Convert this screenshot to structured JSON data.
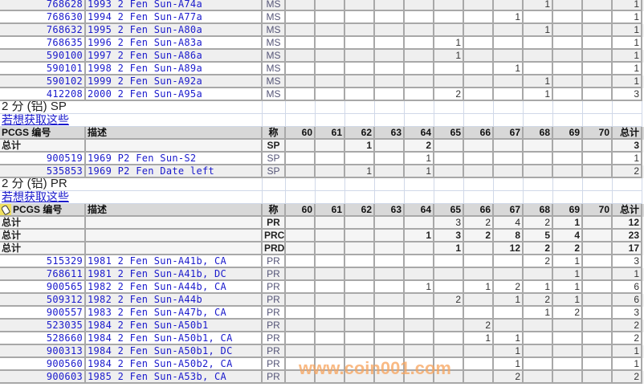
{
  "grades": [
    "60",
    "61",
    "62",
    "63",
    "64",
    "65",
    "66",
    "67",
    "68",
    "69",
    "70"
  ],
  "header": {
    "pcgs": "PCGS 编号",
    "desc": "描述",
    "desig": "称",
    "total": "总计"
  },
  "total_label": "总计",
  "sections": [
    {
      "title": "",
      "link": "",
      "show_header": false,
      "totals": [],
      "rows": [
        {
          "pcgs": "768628",
          "desc": "1993 2 Fen Sun-A74a",
          "desig": "MS",
          "v": {
            "68": "1"
          },
          "total": "1"
        },
        {
          "pcgs": "768630",
          "desc": "1994 2 Fen Sun-A77a",
          "desig": "MS",
          "v": {
            "67": "1"
          },
          "total": "1"
        },
        {
          "pcgs": "768632",
          "desc": "1995 2 Fen Sun-A80a",
          "desig": "MS",
          "v": {
            "68": "1"
          },
          "total": "1"
        },
        {
          "pcgs": "768635",
          "desc": "1996 2 Fen Sun-A83a",
          "desig": "MS",
          "v": {
            "65": "1"
          },
          "total": "1"
        },
        {
          "pcgs": "590100",
          "desc": "1997 2 Fen Sun-A86a",
          "desig": "MS",
          "v": {
            "65": "1"
          },
          "total": "1"
        },
        {
          "pcgs": "590101",
          "desc": "1998 2 Fen Sun-A89a",
          "desig": "MS",
          "v": {
            "67": "1"
          },
          "total": "1"
        },
        {
          "pcgs": "590102",
          "desc": "1999 2 Fen Sun-A92a",
          "desig": "MS",
          "v": {
            "68": "1"
          },
          "total": "1"
        },
        {
          "pcgs": "412208",
          "desc": "2000 2 Fen Sun-A95a",
          "desig": "MS",
          "v": {
            "65": "2",
            "68": "1"
          },
          "total": "3"
        }
      ]
    },
    {
      "title": "2 分 (铝) SP",
      "link": "若想获取这些",
      "show_header": true,
      "totals": [
        {
          "desig": "SP",
          "v": {
            "62": "1",
            "64": "2"
          },
          "total": "3"
        }
      ],
      "rows": [
        {
          "pcgs": "900519",
          "desc": "1969 P2 Fen Sun-S2",
          "desig": "SP",
          "v": {
            "64": "1"
          },
          "total": "1"
        },
        {
          "pcgs": "535853",
          "desc": "1969 P2 Fen Date left",
          "desig": "SP",
          "v": {
            "62": "1",
            "64": "1"
          },
          "total": "2"
        }
      ]
    },
    {
      "title": "2 分 (铝) PR",
      "link": "若想获取这些",
      "show_header": true,
      "totals": [
        {
          "desig": "PR",
          "v": {
            "65": "3",
            "66": "2",
            "67": "4",
            "68": "2",
            "69": "1"
          },
          "total": "12"
        },
        {
          "desig": "PRC",
          "v": {
            "64": "1",
            "65": "3",
            "66": "2",
            "67": "8",
            "68": "5",
            "69": "4"
          },
          "total": "23"
        },
        {
          "desig": "PRD",
          "v": {
            "65": "1",
            "67": "12",
            "68": "2",
            "69": "2"
          },
          "total": "17"
        }
      ],
      "rows": [
        {
          "pcgs": "515329",
          "desc": "1981 2 Fen Sun-A41b, CA",
          "desig": "PR",
          "v": {
            "68": "2",
            "69": "1"
          },
          "total": "3"
        },
        {
          "pcgs": "768611",
          "desc": "1981 2 Fen Sun-A41b, DC",
          "desig": "PR",
          "v": {
            "69": "1"
          },
          "total": "1"
        },
        {
          "pcgs": "900565",
          "desc": "1982 2 Fen Sun-A44b, CA",
          "desig": "PR",
          "v": {
            "64": "1",
            "66": "1",
            "67": "2",
            "68": "1",
            "69": "1"
          },
          "total": "6"
        },
        {
          "pcgs": "509312",
          "desc": "1982 2 Fen Sun-A44b",
          "desig": "PR",
          "v": {
            "65": "2",
            "67": "1",
            "68": "2",
            "69": "1"
          },
          "total": "6"
        },
        {
          "pcgs": "900557",
          "desc": "1983 2 Fen Sun-A47b, CA",
          "desig": "PR",
          "v": {
            "68": "1",
            "69": "2"
          },
          "total": "3"
        },
        {
          "pcgs": "523035",
          "desc": "1984 2 Fen Sun-A50b1",
          "desig": "PR",
          "v": {
            "66": "2"
          },
          "total": "2"
        },
        {
          "pcgs": "528660",
          "desc": "1984 2 Fen Sun-A50b1, CA",
          "desig": "PR",
          "v": {
            "66": "1",
            "67": "1"
          },
          "total": "2"
        },
        {
          "pcgs": "900313",
          "desc": "1984 2 Fen Sun-A50b1, DC",
          "desig": "PR",
          "v": {
            "67": "1"
          },
          "total": "1"
        },
        {
          "pcgs": "900560",
          "desc": "1984 2 Fen Sun-A50b2, CA",
          "desig": "PR",
          "v": {
            "67": "1"
          },
          "total": "1"
        },
        {
          "pcgs": "900603",
          "desc": "1985 2 Fen Sun-A53b, CA",
          "desig": "PR",
          "v": {
            "67": "2"
          },
          "total": "2"
        }
      ]
    }
  ],
  "watermark": "www.coin001.com",
  "colors": {
    "link": "#1a1acc",
    "header_bg": "#d8d8d8",
    "alt_row": "#efefef",
    "watermark": "#f7a35c"
  }
}
